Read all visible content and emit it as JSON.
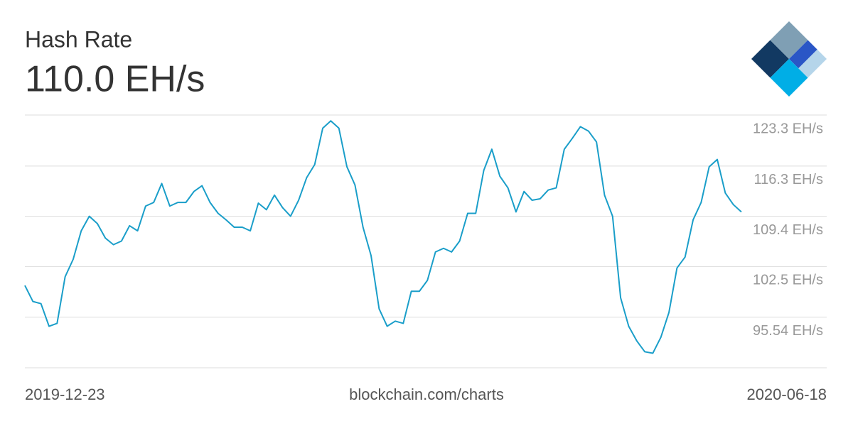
{
  "chart_data": {
    "type": "line",
    "title": "Hash Rate",
    "subtitle": "110.0 EH/s",
    "source": "blockchain.com/charts",
    "x": [
      "2019-12-23",
      "2019-12-25",
      "2019-12-27",
      "2019-12-29",
      "2019-12-31",
      "2020-01-02",
      "2020-01-04",
      "2020-01-06",
      "2020-01-08",
      "2020-01-10",
      "2020-01-12",
      "2020-01-14",
      "2020-01-16",
      "2020-01-18",
      "2020-01-20",
      "2020-01-22",
      "2020-01-24",
      "2020-01-26",
      "2020-01-28",
      "2020-01-30",
      "2020-02-01",
      "2020-02-03",
      "2020-02-05",
      "2020-02-07",
      "2020-02-09",
      "2020-02-11",
      "2020-02-13",
      "2020-02-15",
      "2020-02-17",
      "2020-02-19",
      "2020-02-21",
      "2020-02-23",
      "2020-02-25",
      "2020-02-27",
      "2020-02-29",
      "2020-03-02",
      "2020-03-04",
      "2020-03-06",
      "2020-03-08",
      "2020-03-10",
      "2020-03-12",
      "2020-03-14",
      "2020-03-16",
      "2020-03-18",
      "2020-03-20",
      "2020-03-22",
      "2020-03-24",
      "2020-03-26",
      "2020-03-28",
      "2020-03-30",
      "2020-04-01",
      "2020-04-03",
      "2020-04-05",
      "2020-04-07",
      "2020-04-09",
      "2020-04-11",
      "2020-04-13",
      "2020-04-15",
      "2020-04-17",
      "2020-04-19",
      "2020-04-21",
      "2020-04-23",
      "2020-04-25",
      "2020-04-27",
      "2020-04-29",
      "2020-05-01",
      "2020-05-03",
      "2020-05-05",
      "2020-05-07",
      "2020-05-09",
      "2020-05-11",
      "2020-05-13",
      "2020-05-15",
      "2020-05-17",
      "2020-05-19",
      "2020-05-21",
      "2020-05-23",
      "2020-05-25",
      "2020-05-27",
      "2020-05-29",
      "2020-05-31",
      "2020-06-02",
      "2020-06-04",
      "2020-06-06",
      "2020-06-08",
      "2020-06-10",
      "2020-06-12",
      "2020-06-14",
      "2020-06-16",
      "2020-06-18"
    ],
    "series": [
      {
        "color": "#1a9ec9",
        "values": [
          99.9,
          97.7,
          97.4,
          94.3,
          94.7,
          101.1,
          103.5,
          107.4,
          109.4,
          108.4,
          106.4,
          105.5,
          106.0,
          108.1,
          107.4,
          110.8,
          111.3,
          113.9,
          110.8,
          111.3,
          111.3,
          112.8,
          113.6,
          111.3,
          109.8,
          108.9,
          107.9,
          107.9,
          107.4,
          111.2,
          110.3,
          112.3,
          110.6,
          109.4,
          111.6,
          114.7,
          116.5,
          121.5,
          122.5,
          121.5,
          116.2,
          113.7,
          107.9,
          104.0,
          96.7,
          94.3,
          95.0,
          94.7,
          99.1,
          99.1,
          100.6,
          104.5,
          105.0,
          104.5,
          106.0,
          109.8,
          109.8,
          115.7,
          118.6,
          114.9,
          113.3,
          110.0,
          112.8,
          111.6,
          111.8,
          113.0,
          113.3,
          118.6,
          120.1,
          121.7,
          121.1,
          119.6,
          112.3,
          109.4,
          98.2,
          94.3,
          92.3,
          90.8,
          90.6,
          92.8,
          96.2,
          102.3,
          103.8,
          108.9,
          111.3,
          116.2,
          117.2,
          112.6,
          111.0,
          110.0
        ]
      }
    ],
    "ylim": [
      88.6,
      123.3
    ],
    "yticks": [
      {
        "value": 123.3,
        "label": "123.3 EH/s"
      },
      {
        "value": 116.3,
        "label": "116.3 EH/s"
      },
      {
        "value": 109.4,
        "label": "109.4 EH/s"
      },
      {
        "value": 102.5,
        "label": "102.5 EH/s"
      },
      {
        "value": 95.54,
        "label": "95.54 EH/s"
      }
    ],
    "grid": true
  }
}
